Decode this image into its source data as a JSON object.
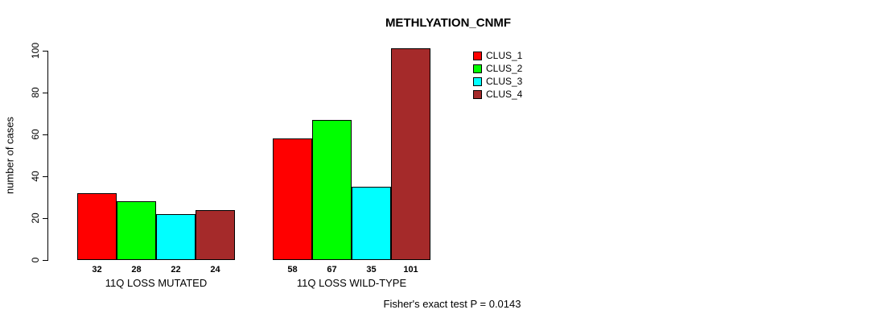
{
  "title": "METHLYATION_CNMF",
  "footer_note": "Fisher's exact test P = 0.0143",
  "chart_data": {
    "type": "bar",
    "title": "METHLYATION_CNMF",
    "xlabel": "",
    "ylabel": "number of cases",
    "ylim": [
      0,
      100
    ],
    "yticks": [
      0,
      20,
      40,
      60,
      80,
      100
    ],
    "grid": false,
    "legend_position": "top-right",
    "bar_value_labels_shown": true,
    "categories": [
      "11Q LOSS MUTATED",
      "11Q LOSS WILD-TYPE"
    ],
    "series": [
      {
        "name": "CLUS_1",
        "color": "#FF0000",
        "values": [
          32,
          58
        ]
      },
      {
        "name": "CLUS_2",
        "color": "#00FF00",
        "values": [
          28,
          67
        ]
      },
      {
        "name": "CLUS_3",
        "color": "#00FFFF",
        "values": [
          22,
          35
        ]
      },
      {
        "name": "CLUS_4",
        "color": "#A52A2A",
        "values": [
          24,
          101
        ]
      }
    ],
    "annotation": "Fisher's exact test P = 0.0143"
  }
}
